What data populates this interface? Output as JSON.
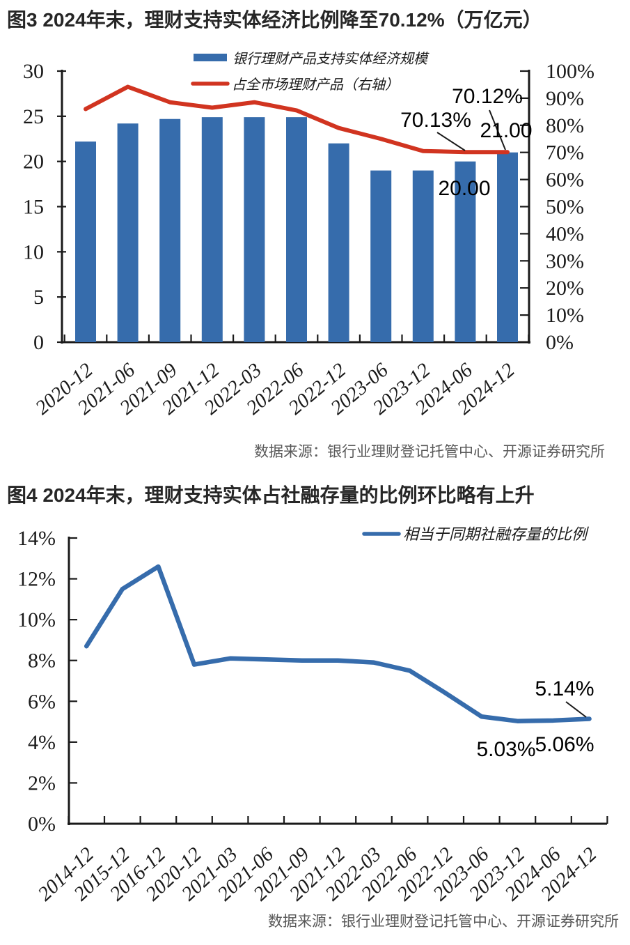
{
  "page": {
    "background": "#ffffff"
  },
  "fig3": {
    "title": "图3  2024年末，理财支持实体经济比例降至70.12%（万亿元）",
    "source": "数据来源：银行业理财登记托管中心、开源证券研究所",
    "legend": [
      {
        "label": "银行理财产品支持实体经济规模",
        "marker": "bar",
        "color": "#366CAC"
      },
      {
        "label": "占全市场理财产品（右轴）",
        "marker": "line",
        "color": "#D13420"
      }
    ],
    "chart_data": {
      "type": "bar+line",
      "categories": [
        "2020-12",
        "2021-06",
        "2021-09",
        "2021-12",
        "2022-03",
        "2022-06",
        "2022-12",
        "2023-06",
        "2023-12",
        "2024-06",
        "2024-12"
      ],
      "series": [
        {
          "name": "银行理财产品支持实体经济规模",
          "type": "bar",
          "axis": "left",
          "unit": "万亿元",
          "color": "#366CAC",
          "values": [
            22.2,
            24.2,
            24.7,
            24.9,
            24.9,
            24.9,
            22.0,
            19.0,
            19.0,
            20.0,
            21.0
          ]
        },
        {
          "name": "占全市场理财产品（右轴）",
          "type": "line",
          "axis": "right",
          "unit": "%",
          "color": "#D13420",
          "values": [
            86.0,
            94.2,
            88.5,
            86.5,
            88.5,
            85.5,
            79.0,
            75.0,
            70.5,
            70.13,
            70.12
          ]
        }
      ],
      "left_axis": {
        "min": 0,
        "max": 30,
        "step": 5,
        "tick_labels": [
          "0",
          "5",
          "10",
          "15",
          "20",
          "25",
          "30"
        ]
      },
      "right_axis": {
        "min": 0,
        "max": 100,
        "step": 10,
        "tick_labels": [
          "0%",
          "10%",
          "20%",
          "30%",
          "40%",
          "50%",
          "60%",
          "70%",
          "80%",
          "90%",
          "100%"
        ]
      },
      "annotations": [
        {
          "text": "70.12%",
          "target": "占全市场理财产品（右轴） 2024-12"
        },
        {
          "text": "70.13%",
          "target": "占全市场理财产品（右轴） 2024-06"
        },
        {
          "text": "21.00",
          "target": "银行理财产品支持实体经济规模 2024-12"
        },
        {
          "text": "20.00",
          "target": "银行理财产品支持实体经济规模 2024-06"
        }
      ],
      "grid": false,
      "legend_position": "top-center"
    }
  },
  "fig4": {
    "title": "图4  2024年末，理财支持实体占社融存量的比例环比略有上升",
    "source": "数据来源：银行业理财登记托管中心、开源证券研究所",
    "legend": [
      {
        "label": "相当于同期社融存量的比例",
        "marker": "line",
        "color": "#366CAC"
      }
    ],
    "chart_data": {
      "type": "line",
      "categories": [
        "2014-12",
        "2015-12",
        "2016-12",
        "2020-12",
        "2021-03",
        "2021-06",
        "2021-09",
        "2021-12",
        "2022-03",
        "2022-06",
        "2022-12",
        "2023-06",
        "2023-12",
        "2024-06",
        "2024-12"
      ],
      "series": [
        {
          "name": "相当于同期社融存量的比例",
          "type": "line",
          "axis": "left",
          "unit": "%",
          "color": "#366CAC",
          "values": [
            8.7,
            11.5,
            12.6,
            7.8,
            8.1,
            8.05,
            8.0,
            8.0,
            7.9,
            7.5,
            6.4,
            5.25,
            5.03,
            5.06,
            5.14
          ]
        }
      ],
      "left_axis": {
        "min": 0,
        "max": 14,
        "step": 2,
        "tick_labels": [
          "0%",
          "2%",
          "4%",
          "6%",
          "8%",
          "10%",
          "12%",
          "14%"
        ]
      },
      "right_axis": null,
      "annotations": [
        {
          "text": "5.14%",
          "target": "相当于同期社融存量的比例 2024-12"
        },
        {
          "text": "5.03%",
          "target": "相当于同期社融存量的比例 2023-12"
        },
        {
          "text": "5.06%",
          "target": "相当于同期社融存量的比例 2024-06"
        }
      ],
      "grid": false,
      "legend_position": "top-right"
    }
  }
}
